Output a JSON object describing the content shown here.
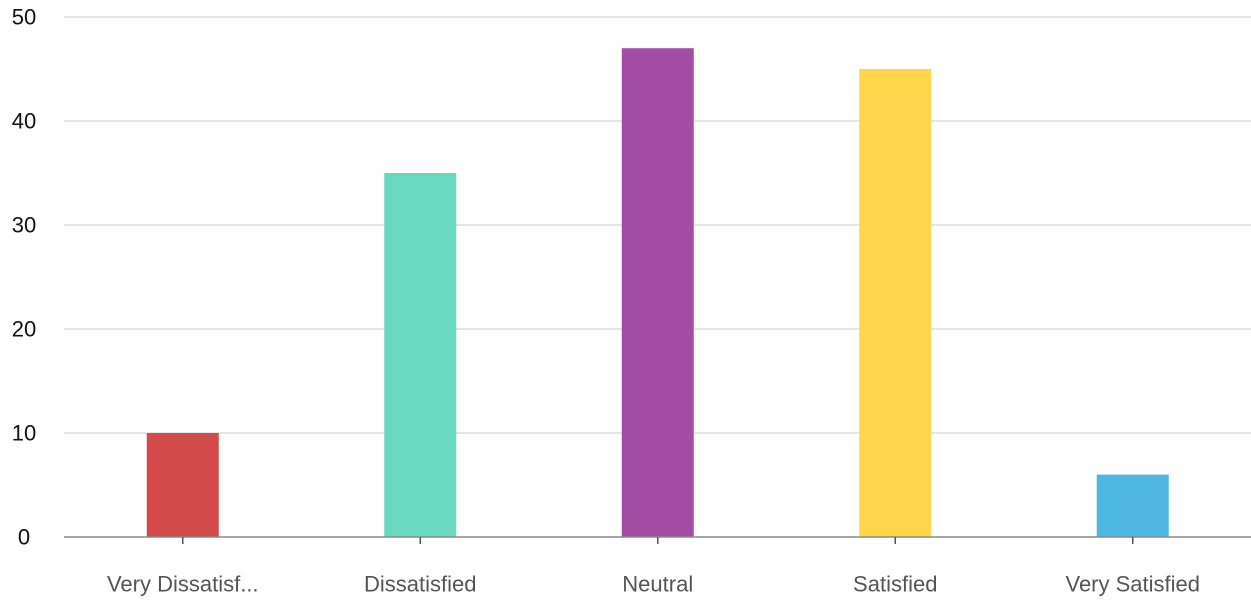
{
  "chart_data": {
    "type": "bar",
    "categories": [
      "Very Dissatisf...",
      "Dissatisfied",
      "Neutral",
      "Satisfied",
      "Very Satisfied"
    ],
    "values": [
      10,
      35,
      47,
      45,
      6
    ],
    "colors": [
      "#d34a4b",
      "#68d8be",
      "#a24ca3",
      "#ffd64a",
      "#4fb8e2"
    ],
    "y_ticks": [
      "0",
      "10",
      "20",
      "30",
      "40",
      "50"
    ],
    "ylim": [
      0,
      50
    ],
    "title": "",
    "xlabel": "",
    "ylabel": "",
    "grid": true,
    "legend": "none"
  }
}
